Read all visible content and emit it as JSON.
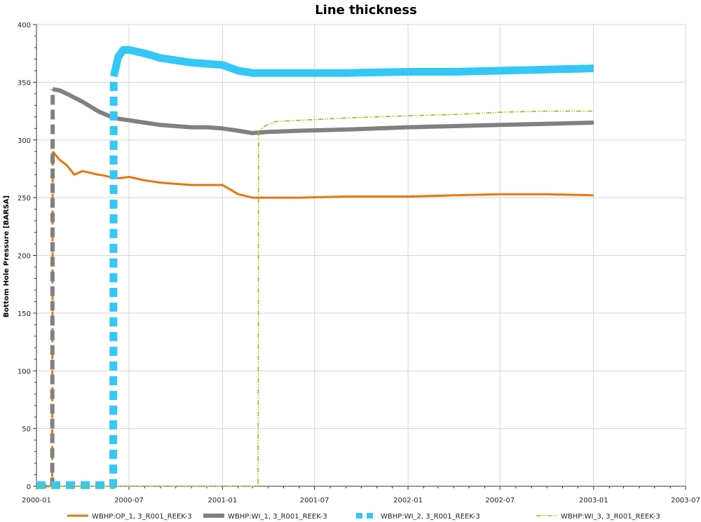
{
  "chart_data": {
    "type": "line",
    "title": "Line thickness",
    "xlabel": "",
    "ylabel": "Bottom Hole Pressure [BARSA]",
    "x_ticks": [
      "2000-01",
      "2000-07",
      "2001-01",
      "2001-07",
      "2002-01",
      "2002-07",
      "2003-01",
      "2003-07"
    ],
    "xlim": [
      "2000-01-01",
      "2003-07-01"
    ],
    "ylim": [
      0,
      400
    ],
    "y_ticks": [
      0,
      50,
      100,
      150,
      200,
      250,
      300,
      350,
      400
    ],
    "grid": true,
    "legend_position": "bottom",
    "series": [
      {
        "name": "WBHP:OP_1, 3_R001_REEK-3",
        "color": "#e8760a",
        "line_style": "dashed-to-solid",
        "x": [
          "2000-01-01",
          "2000-02-01",
          "2000-02-02",
          "2000-02-15",
          "2000-03-01",
          "2000-03-10",
          "2000-03-15",
          "2000-04-01",
          "2000-05-01",
          "2000-05-15",
          "2000-06-01",
          "2000-06-15",
          "2000-07-01",
          "2000-08-01",
          "2000-09-01",
          "2000-10-01",
          "2000-11-01",
          "2000-12-01",
          "2001-01-01",
          "2001-02-01",
          "2001-03-01",
          "2001-04-01",
          "2001-06-01",
          "2001-09-01",
          "2002-01-01",
          "2002-04-01",
          "2002-07-01",
          "2002-10-01",
          "2003-01-01"
        ],
        "y": [
          0,
          0,
          290,
          283,
          278,
          273,
          270,
          273,
          270,
          269,
          267,
          267,
          268,
          265,
          263,
          262,
          261,
          261,
          261,
          253,
          250,
          250,
          250,
          251,
          251,
          252,
          253,
          253,
          252
        ]
      },
      {
        "name": "WBHP:WI_1, 3_R001_REEK-3",
        "color": "#808080",
        "line_style": "dashed-to-solid",
        "x": [
          "2000-01-01",
          "2000-02-01",
          "2000-02-02",
          "2000-02-15",
          "2000-03-01",
          "2000-04-01",
          "2000-05-01",
          "2000-06-01",
          "2000-07-01",
          "2000-08-01",
          "2000-09-01",
          "2000-10-01",
          "2000-11-01",
          "2000-12-01",
          "2001-01-01",
          "2001-02-01",
          "2001-03-01",
          "2001-04-01",
          "2001-06-01",
          "2001-09-01",
          "2002-01-01",
          "2002-04-01",
          "2002-07-01",
          "2002-10-01",
          "2003-01-01"
        ],
        "y": [
          0,
          0,
          344,
          343,
          340,
          333,
          325,
          319,
          317,
          315,
          313,
          312,
          311,
          311,
          310,
          308,
          306,
          307,
          308,
          309,
          311,
          312,
          313,
          314,
          315
        ]
      },
      {
        "name": "WBHP:WI_2, 3_R001_REEK-3",
        "color": "#33c8f5",
        "line_style": "dashed-to-solid",
        "x": [
          "2000-01-01",
          "2000-05-31",
          "2000-06-01",
          "2000-06-10",
          "2000-06-20",
          "2000-07-01",
          "2000-08-01",
          "2000-09-01",
          "2000-10-01",
          "2000-11-01",
          "2000-12-01",
          "2001-01-01",
          "2001-02-01",
          "2001-03-01",
          "2001-04-01",
          "2001-06-01",
          "2001-09-01",
          "2002-01-01",
          "2002-04-01",
          "2002-07-01",
          "2002-10-01",
          "2003-01-01"
        ],
        "y": [
          1,
          1,
          355,
          372,
          378,
          378,
          375,
          371,
          369,
          367,
          366,
          365,
          360,
          358,
          358,
          358,
          358,
          359,
          359,
          360,
          361,
          362
        ]
      },
      {
        "name": "WBHP:WI_3, 3_R001_REEK-3",
        "color": "#a2b81a",
        "line_style": "dash-dot-dot",
        "x": [
          "2000-01-01",
          "2001-03-12",
          "2001-03-13",
          "2001-03-25",
          "2001-04-15",
          "2001-06-01",
          "2001-09-01",
          "2002-01-01",
          "2002-04-01",
          "2002-07-01",
          "2002-10-01",
          "2003-01-01"
        ],
        "y": [
          0,
          0,
          307,
          312,
          316,
          317,
          319,
          321,
          322,
          324,
          325,
          325
        ]
      }
    ]
  }
}
